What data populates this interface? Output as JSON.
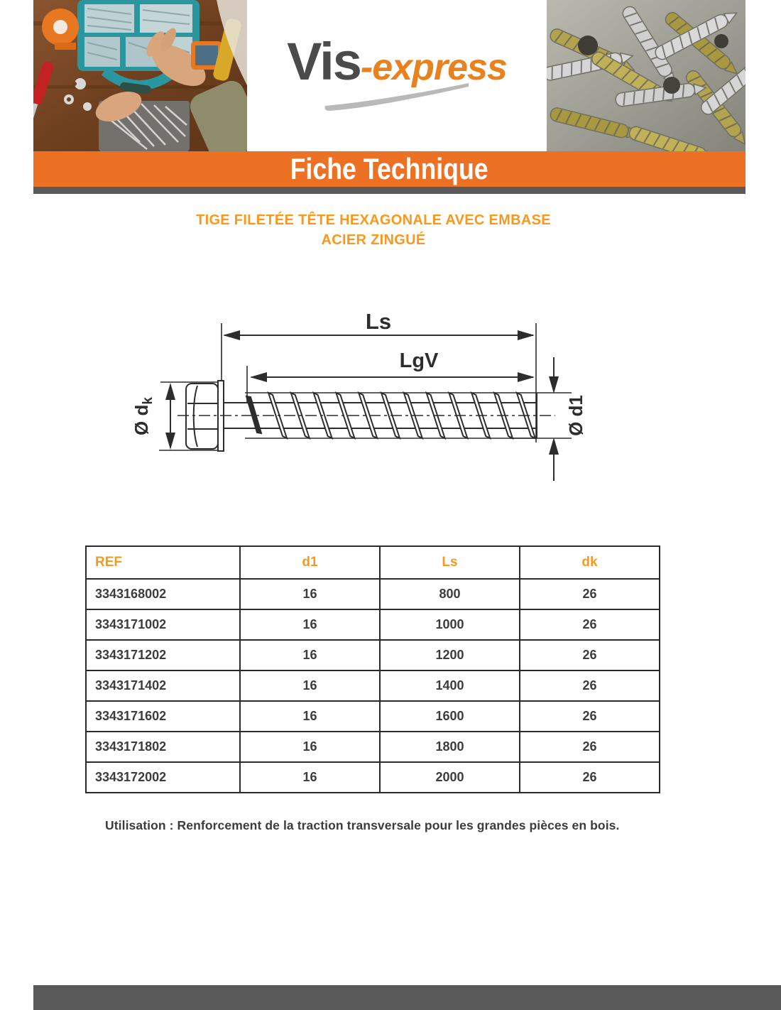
{
  "header": {
    "logo": {
      "part1": "Vis",
      "part2": "-express"
    },
    "banner": "Fiche Technique"
  },
  "title": {
    "line1": "TIGE FILETÉE TÊTE HEXAGONALE AVEC EMBASE",
    "line2": "ACIER ZINGUÉ"
  },
  "diagram": {
    "labels": {
      "ls": "Ls",
      "lgv": "LgV",
      "dk_main": "Ø d",
      "dk_sub": "k",
      "d1": "Ø d1"
    }
  },
  "table": {
    "headers": [
      "REF",
      "d1",
      "Ls",
      "dk"
    ],
    "rows": [
      [
        "3343168002",
        "16",
        "800",
        "26"
      ],
      [
        "3343171002",
        "16",
        "1000",
        "26"
      ],
      [
        "3343171202",
        "16",
        "1200",
        "26"
      ],
      [
        "3343171402",
        "16",
        "1400",
        "26"
      ],
      [
        "3343171602",
        "16",
        "1600",
        "26"
      ],
      [
        "3343171802",
        "16",
        "1800",
        "26"
      ],
      [
        "3343172002",
        "16",
        "2000",
        "26"
      ]
    ]
  },
  "usage": {
    "text": "Utilisation : Renforcement de la traction transversale pour les grandes pièces en bois."
  },
  "colors": {
    "banner_orange": "#ed7125",
    "accent_orange": "#f8991d",
    "bar_gray": "#595959",
    "text_dark": "#3c3c3c"
  }
}
